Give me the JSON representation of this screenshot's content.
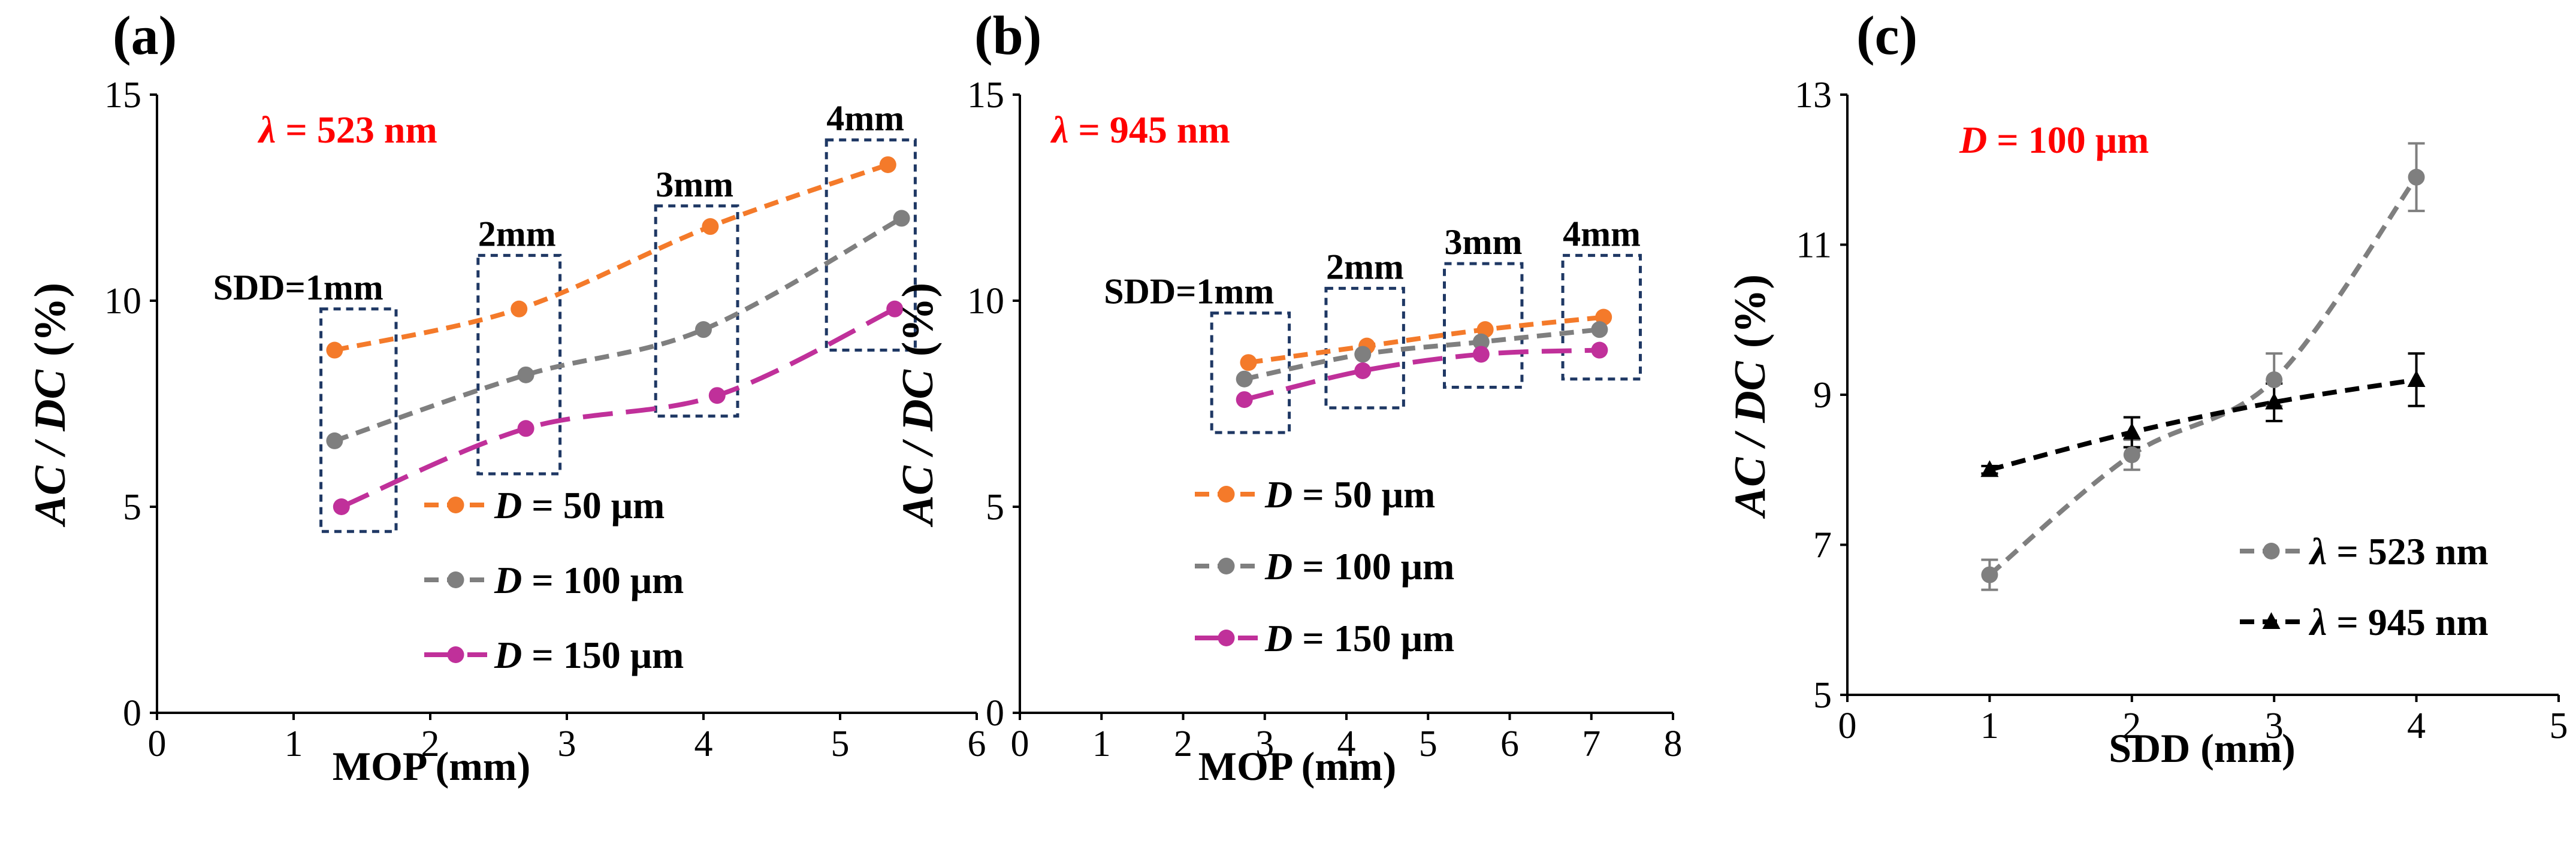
{
  "colors": {
    "d50": "#f47a2a",
    "d100": "#7f7f7f",
    "d150": "#c0309a",
    "lam523": "#7f7f7f",
    "lam945": "#000000",
    "box": "#1f3864",
    "param_text": "#ff0000"
  },
  "chart_data": [
    {
      "panel": "(a)",
      "type": "line",
      "parameter": {
        "symbol": "λ",
        "rest": " = 523 nm"
      },
      "xlabel": "MOP (mm)",
      "ylabel": {
        "main": "AC / DC",
        "unit": "(%)"
      },
      "xlim": [
        0,
        6
      ],
      "ylim": [
        0,
        15
      ],
      "xticks": [
        "0",
        "1",
        "2",
        "3",
        "4",
        "5",
        "6"
      ],
      "yticks": [
        "0",
        "5",
        "10",
        "15"
      ],
      "series": [
        {
          "key": "d50",
          "legend_symbol": "D",
          "legend_rest": " = 50 μm",
          "style": "dashed",
          "marker": "circle",
          "x": [
            1.3,
            2.65,
            4.05,
            5.35
          ],
          "y": [
            8.8,
            9.8,
            11.8,
            13.3
          ]
        },
        {
          "key": "d100",
          "legend_symbol": "D",
          "legend_rest": " = 100 μm",
          "style": "dashed",
          "marker": "circle",
          "x": [
            1.3,
            2.7,
            4.0,
            5.45
          ],
          "y": [
            6.6,
            8.2,
            9.3,
            12.0
          ]
        },
        {
          "key": "d150",
          "legend_symbol": "D",
          "legend_rest": " = 150 μm",
          "style": "longdash",
          "marker": "circle",
          "x": [
            1.35,
            2.7,
            4.1,
            5.4
          ],
          "y": [
            5.0,
            6.9,
            7.7,
            9.8
          ]
        }
      ],
      "groups": [
        {
          "label": "SDD=1mm",
          "xmin": 1.2,
          "xmax": 1.75,
          "ymin": 4.4,
          "ymax": 9.8
        },
        {
          "label": "2mm",
          "xmin": 2.35,
          "xmax": 2.95,
          "ymin": 5.8,
          "ymax": 11.1
        },
        {
          "label": "3mm",
          "xmin": 3.65,
          "xmax": 4.25,
          "ymin": 7.2,
          "ymax": 12.3
        },
        {
          "label": "4mm",
          "xmin": 4.9,
          "xmax": 5.55,
          "ymin": 8.8,
          "ymax": 13.9
        }
      ]
    },
    {
      "panel": "(b)",
      "type": "line",
      "parameter": {
        "symbol": "λ",
        "rest": " = 945 nm"
      },
      "xlabel": "MOP (mm)",
      "ylabel": {
        "main": "AC / DC",
        "unit": "(%)"
      },
      "xlim": [
        0,
        8
      ],
      "ylim": [
        0,
        15
      ],
      "xticks": [
        "0",
        "1",
        "2",
        "3",
        "4",
        "5",
        "6",
        "7",
        "8"
      ],
      "yticks": [
        "0",
        "5",
        "10",
        "15"
      ],
      "series": [
        {
          "key": "d50",
          "legend_symbol": "D",
          "legend_rest": " = 50 μm",
          "style": "dashed",
          "marker": "circle",
          "x": [
            2.8,
            4.25,
            5.7,
            7.15
          ],
          "y": [
            8.5,
            8.9,
            9.3,
            9.6
          ]
        },
        {
          "key": "d100",
          "legend_symbol": "D",
          "legend_rest": " = 100 μm",
          "style": "dashed",
          "marker": "circle",
          "x": [
            2.75,
            4.2,
            5.65,
            7.1
          ],
          "y": [
            8.1,
            8.7,
            9.0,
            9.3
          ]
        },
        {
          "key": "d150",
          "legend_symbol": "D",
          "legend_rest": " = 150 μm",
          "style": "longdash",
          "marker": "circle",
          "x": [
            2.75,
            4.2,
            5.65,
            7.1
          ],
          "y": [
            7.6,
            8.3,
            8.7,
            8.8
          ]
        }
      ],
      "groups": [
        {
          "label": "SDD=1mm",
          "xmin": 2.35,
          "xmax": 3.3,
          "ymin": 6.8,
          "ymax": 9.7
        },
        {
          "label": "2mm",
          "xmin": 3.75,
          "xmax": 4.7,
          "ymin": 7.4,
          "ymax": 10.3
        },
        {
          "label": "3mm",
          "xmin": 5.2,
          "xmax": 6.15,
          "ymin": 7.9,
          "ymax": 10.9
        },
        {
          "label": "4mm",
          "xmin": 6.65,
          "xmax": 7.6,
          "ymin": 8.1,
          "ymax": 11.1
        }
      ]
    },
    {
      "panel": "(c)",
      "type": "line",
      "parameter": {
        "symbol": "D",
        "rest": " = 100 μm"
      },
      "xlabel": "SDD (mm)",
      "ylabel": {
        "main": "AC / DC",
        "unit": "(%)"
      },
      "xlim": [
        0,
        5
      ],
      "ylim": [
        5,
        13
      ],
      "xticks": [
        "0",
        "1",
        "2",
        "3",
        "4",
        "5"
      ],
      "yticks": [
        "5",
        "7",
        "9",
        "11",
        "13"
      ],
      "series": [
        {
          "key": "lam523",
          "legend_symbol": "λ",
          "legend_rest": " = 523 nm",
          "style": "dashed",
          "marker": "circle",
          "x": [
            1,
            2,
            3,
            4
          ],
          "y": [
            6.6,
            8.2,
            9.2,
            11.9
          ],
          "err": [
            0.2,
            0.2,
            0.35,
            0.45
          ]
        },
        {
          "key": "lam945",
          "legend_symbol": "λ",
          "legend_rest": " = 945 nm",
          "style": "dashed",
          "marker": "triangle",
          "x": [
            1,
            2,
            3,
            4
          ],
          "y": [
            8.0,
            8.5,
            8.9,
            9.2
          ],
          "err": [
            0.05,
            0.2,
            0.25,
            0.35
          ]
        }
      ],
      "groups": []
    }
  ]
}
